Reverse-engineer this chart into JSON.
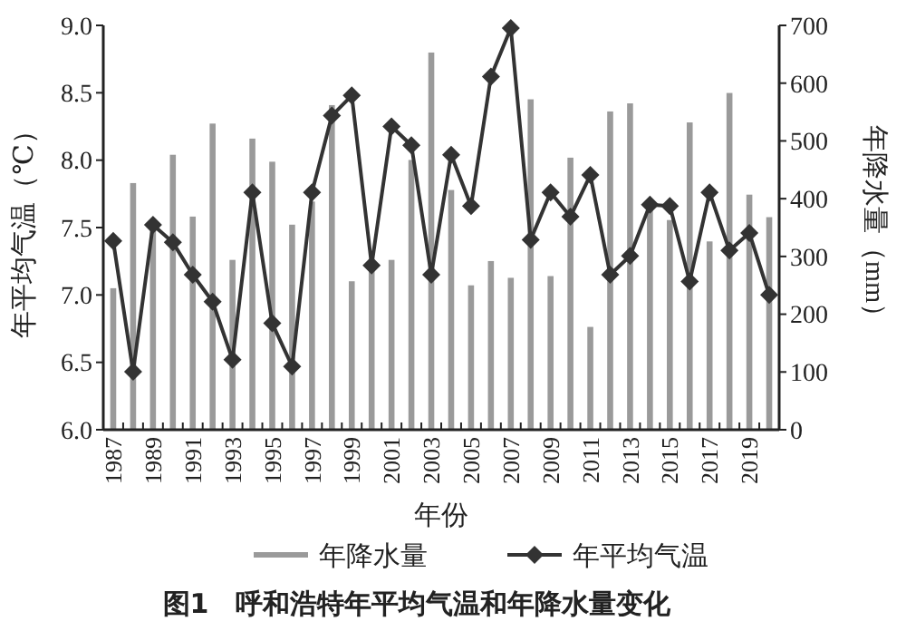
{
  "chart_data": {
    "type": "bar",
    "title": "图1　呼和浩特年平均气温和年降水量变化",
    "xlabel": "年份",
    "ylabel": "年平均气温（℃）",
    "y2label": "年降水量（mm）",
    "categories": [
      "1987",
      null,
      "1989",
      null,
      "1991",
      null,
      "1993",
      null,
      "1995",
      null,
      "1997",
      null,
      "1999",
      null,
      "2001",
      null,
      "2003",
      null,
      "2005",
      null,
      "2007",
      null,
      "2009",
      null,
      "2011",
      null,
      "2013",
      null,
      "2015",
      null,
      "2017",
      null,
      "2019",
      null
    ],
    "series": [
      {
        "name": "年降水量",
        "axis": "y2",
        "color": "#9a9a9a",
        "values": [
          245,
          427,
          355,
          476,
          369,
          530,
          294,
          504,
          464,
          355,
          395,
          562,
          257,
          280,
          294,
          467,
          653,
          415,
          250,
          292,
          263,
          572,
          266,
          471,
          178,
          551,
          565,
          380,
          363,
          532,
          326,
          583,
          407,
          368
        ]
      },
      {
        "name": "年平均气温",
        "type": "line",
        "axis": "y",
        "color": "#333333",
        "marker": "diamond",
        "values": [
          7.4,
          6.43,
          7.52,
          7.39,
          7.15,
          6.95,
          6.52,
          7.76,
          6.79,
          6.47,
          7.76,
          8.33,
          8.48,
          7.22,
          8.25,
          8.11,
          7.15,
          8.04,
          7.66,
          8.62,
          8.98,
          7.41,
          7.76,
          7.58,
          7.89,
          7.15,
          7.29,
          7.67,
          7.66,
          7.1,
          7.76,
          7.33,
          7.46,
          7.0
        ]
      }
    ],
    "ylim": [
      6,
      9
    ],
    "yticks": [
      {
        "value": 6,
        "label": "6.0"
      },
      {
        "value": 6.5,
        "label": "6.5"
      },
      {
        "value": 7,
        "label": "7.0"
      },
      {
        "value": 7.5,
        "label": "7.5"
      },
      {
        "value": 8,
        "label": "8.0"
      },
      {
        "value": 8.5,
        "label": "8.5"
      },
      {
        "value": 9,
        "label": "9.0"
      }
    ],
    "y2lim": [
      0,
      700
    ],
    "y2ticks": [
      0,
      100,
      200,
      300,
      400,
      500,
      600,
      700
    ],
    "legend": "bottom",
    "grid": false
  }
}
